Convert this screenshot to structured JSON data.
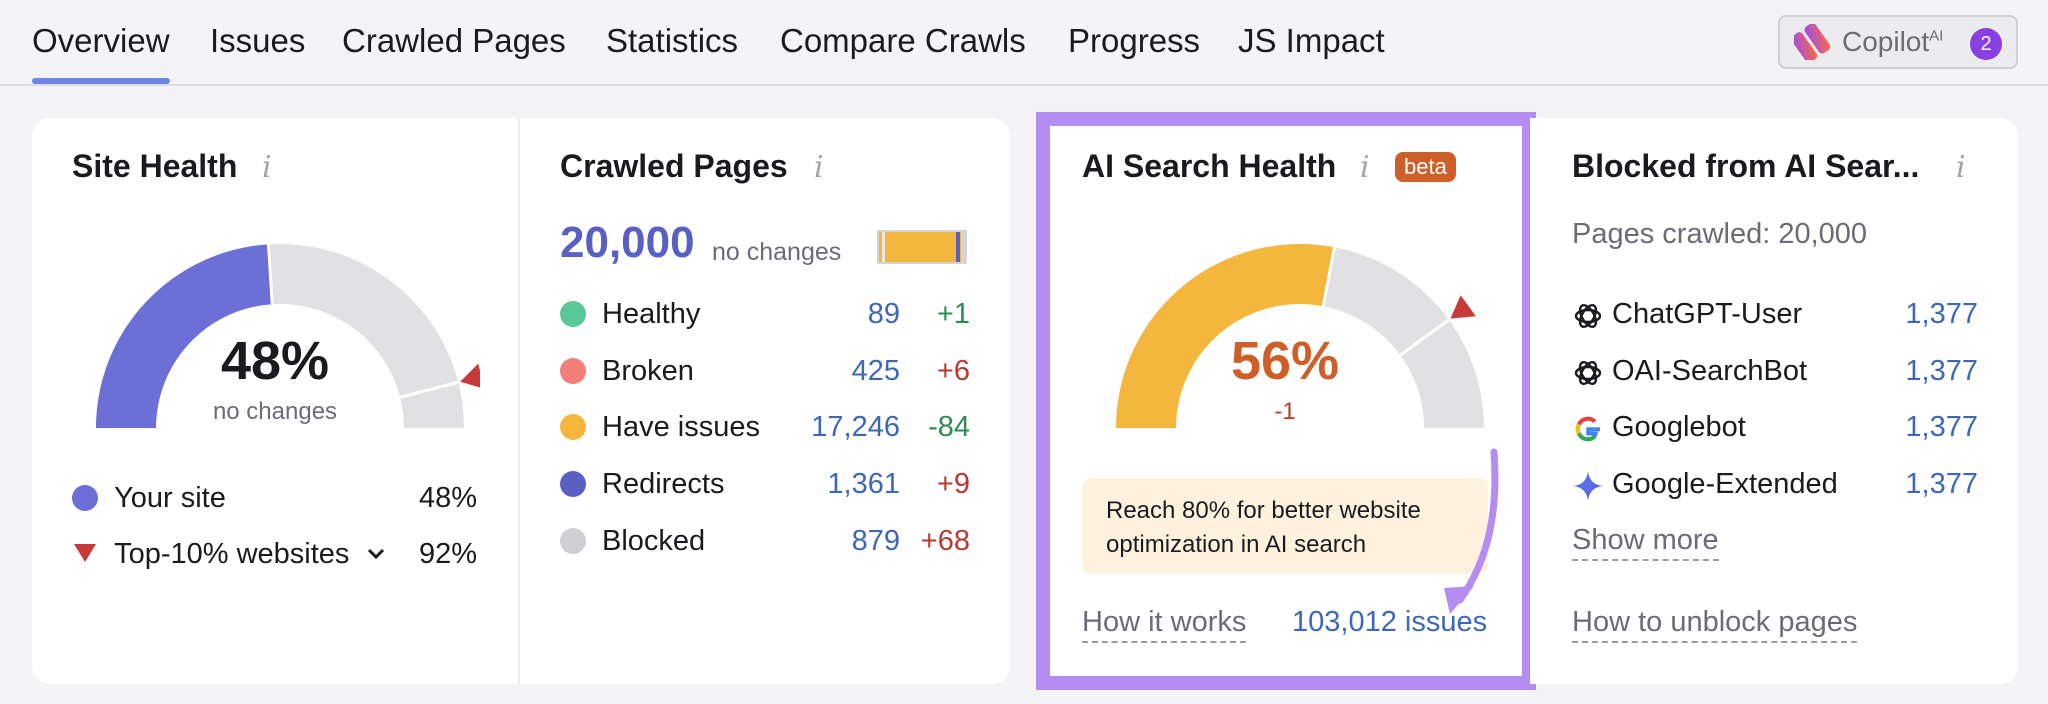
{
  "nav": {
    "tabs": [
      "Overview",
      "Issues",
      "Crawled Pages",
      "Statistics",
      "Compare Crawls",
      "Progress",
      "JS Impact"
    ],
    "active_tab": "Overview",
    "copilot_label": "Copilot",
    "copilot_sup": "AI",
    "copilot_count": "2"
  },
  "site_health": {
    "title": "Site Health",
    "info_icon": "i",
    "value": "48%",
    "value_fraction": 0.48,
    "benchmark_fraction": 0.92,
    "change": "no changes",
    "legend": [
      {
        "label": "Your site",
        "value": "48%"
      },
      {
        "label": "Top-10% websites",
        "value": "92%"
      }
    ]
  },
  "crawled_pages": {
    "title": "Crawled Pages",
    "info_icon": "i",
    "total": "20,000",
    "change": "no changes",
    "rows": [
      {
        "label": "Healthy",
        "value": "89",
        "delta": "+1",
        "color": "#59c796",
        "delta_type": "pos"
      },
      {
        "label": "Broken",
        "value": "425",
        "delta": "+6",
        "color": "#f28078",
        "delta_type": "neg"
      },
      {
        "label": "Have issues",
        "value": "17,246",
        "delta": "-84",
        "color": "#f5b63e",
        "delta_type": "pos"
      },
      {
        "label": "Redirects",
        "value": "1,361",
        "delta": "+9",
        "color": "#5a5fc4",
        "delta_type": "neg"
      },
      {
        "label": "Blocked",
        "value": "879",
        "delta": "+68",
        "color": "#cfcfd3",
        "delta_type": "neg"
      }
    ]
  },
  "ai_search_health": {
    "title": "AI Search Health",
    "info_icon": "i",
    "badge": "beta",
    "value": "56%",
    "value_fraction": 0.56,
    "target_fraction": 0.8,
    "delta": "-1",
    "tip": "Reach 80% for better website optimization in AI search",
    "how_it_works": "How it works",
    "issues_link": "103,012 issues"
  },
  "blocked": {
    "title": "Blocked from AI Sear...",
    "info_icon": "i",
    "pages_crawled": "Pages crawled: 20,000",
    "bots": [
      {
        "name": "ChatGPT-User",
        "value": "1,377",
        "icon": "openai-icon"
      },
      {
        "name": "OAI-SearchBot",
        "value": "1,377",
        "icon": "openai-icon"
      },
      {
        "name": "Googlebot",
        "value": "1,377",
        "icon": "google-icon"
      },
      {
        "name": "Google-Extended",
        "value": "1,377",
        "icon": "gemini-icon"
      }
    ],
    "show_more": "Show more",
    "how_to_unblock": "How to unblock pages"
  },
  "colors": {
    "site_gauge": "#6b6fd6",
    "ai_gauge": "#f5b63e",
    "gauge_track": "#e1e1e3",
    "benchmark_marker": "#c83a3a",
    "highlight_border": "#b58df2",
    "link": "#3d68b8"
  }
}
